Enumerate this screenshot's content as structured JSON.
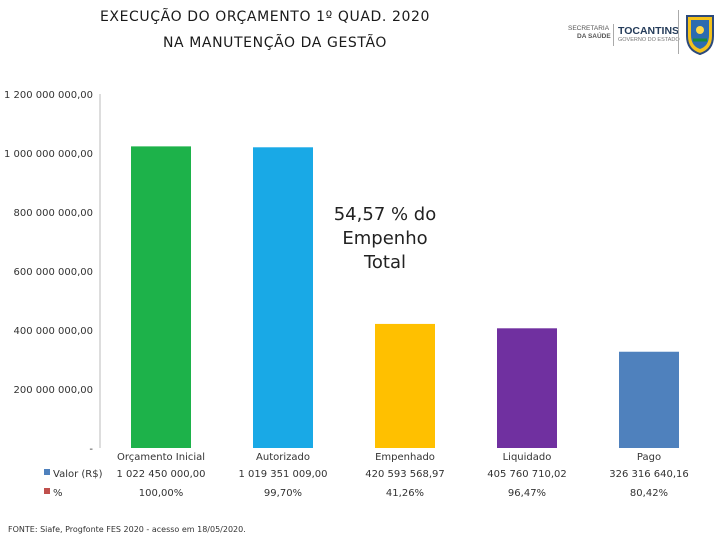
{
  "header": {
    "title_line1": "EXECUÇÃO DO ORÇAMENTO 1º QUAD. 2020",
    "title_line2": "NA MANUTENÇÃO DA GESTÃO"
  },
  "logos": {
    "secretaria_line1": "SECRETARIA",
    "secretaria_line2": "DA SAÚDE",
    "tocantins": "TOCANTINS",
    "governo": "GOVERNO DO ESTADO"
  },
  "chart_data": {
    "type": "bar",
    "title": "EXECUÇÃO DO ORÇAMENTO 1º QUAD. 2020 NA MANUTENÇÃO DA GESTÃO",
    "ylim": [
      0,
      1200000000
    ],
    "y_ticks": [
      0,
      200000000,
      400000000,
      600000000,
      800000000,
      1000000000,
      1200000000
    ],
    "y_tick_labels": [
      "-",
      "200 000 000,00",
      "400 000 000,00",
      "600 000 000,00",
      "800 000 000,00",
      "1 000 000 000,00",
      "1 200 000 000,00"
    ],
    "categories": [
      "Orçamento Inicial",
      "Autorizado",
      "Empenhado",
      "Liquidado",
      "Pago"
    ],
    "values": [
      1022450000,
      1019351009,
      420593568.97,
      405760710.02,
      326316640.16
    ],
    "bar_colors": [
      "#1db24a",
      "#19a9e6",
      "#ffc000",
      "#7030a0",
      "#4f81bd"
    ],
    "table": {
      "rows": [
        {
          "name": "Valor (R$)",
          "color": "#4f81bd",
          "cells": [
            "1 022 450 000,00",
            "1 019 351 009,00",
            "420 593 568,97",
            "405 760 710,02",
            "326 316 640,16"
          ]
        },
        {
          "name": "%",
          "color": "#c0504d",
          "cells": [
            "100,00%",
            "99,70%",
            "41,26%",
            "96,47%",
            "80,42%"
          ]
        }
      ]
    },
    "annotation": [
      "54,57 % do",
      "Empenho",
      "Total"
    ]
  },
  "footer": {
    "source": "FONTE: Siafe, Progfonte FES 2020 - acesso em 18/05/2020."
  }
}
